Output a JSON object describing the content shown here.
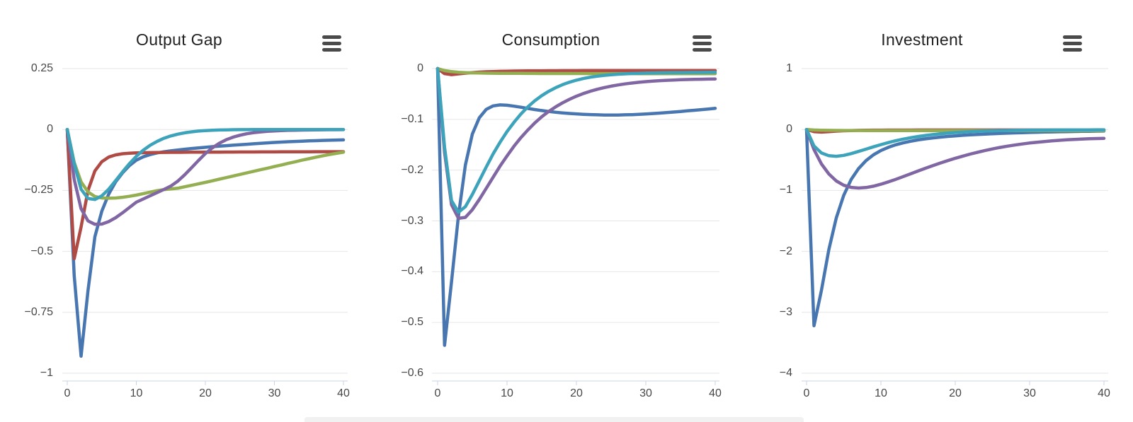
{
  "page": {
    "background": "#ffffff"
  },
  "style": {
    "grid_color": "#e6e6e6",
    "axis_line_color": "#c8d3e4",
    "tick_label_color": "#474747",
    "title_color": "#222222",
    "menu_icon_color": "#4a4a4a",
    "bottom_panel_color": "#f1f1f1"
  },
  "chart_data": [
    {
      "type": "line",
      "title": "Output Gap",
      "menu_icon": "hamburger-menu-icon",
      "legend": "none",
      "grid": "horizontal-only",
      "x_range": [
        0,
        40
      ],
      "x_step": 1,
      "x_tick_values": [
        0,
        10,
        20,
        30,
        40
      ],
      "x_tick_labels": [
        "0",
        "10",
        "20",
        "30",
        "40"
      ],
      "y_tick_values": [
        0.25,
        0,
        -0.25,
        -0.5,
        -0.75,
        -1
      ],
      "y_tick_labels": [
        "0.25",
        "0",
        "−0.25",
        "−0.5",
        "−0.75",
        "−1"
      ],
      "ylim": [
        -1.03,
        0.25
      ],
      "series": [
        {
          "name": "series-blue",
          "color": "#4876B0",
          "values": [
            0,
            -0.6,
            -0.93,
            -0.66,
            -0.44,
            -0.335,
            -0.265,
            -0.215,
            -0.178,
            -0.148,
            -0.126,
            -0.112,
            -0.103,
            -0.096,
            -0.0915,
            -0.0875,
            -0.084,
            -0.081,
            -0.078,
            -0.0755,
            -0.073,
            -0.0705,
            -0.0685,
            -0.0665,
            -0.0645,
            -0.0625,
            -0.0605,
            -0.0585,
            -0.0565,
            -0.0548,
            -0.0532,
            -0.0517,
            -0.0503,
            -0.049,
            -0.0478,
            -0.0467,
            -0.0457,
            -0.0448,
            -0.044,
            -0.0432,
            -0.0425
          ]
        },
        {
          "name": "series-red",
          "color": "#B04A45",
          "values": [
            0,
            -0.53,
            -0.4,
            -0.25,
            -0.17,
            -0.132,
            -0.113,
            -0.104,
            -0.0995,
            -0.0975,
            -0.096,
            -0.0952,
            -0.0947,
            -0.0943,
            -0.094,
            -0.0938,
            -0.0936,
            -0.0934,
            -0.0932,
            -0.0931,
            -0.0929,
            -0.0928,
            -0.0927,
            -0.0925,
            -0.0924,
            -0.0923,
            -0.0922,
            -0.0921,
            -0.092,
            -0.0919,
            -0.0918,
            -0.0917,
            -0.0916,
            -0.0915,
            -0.0914,
            -0.0913,
            -0.0912,
            -0.0912,
            -0.0911,
            -0.091,
            -0.091
          ]
        },
        {
          "name": "series-green",
          "color": "#94AE52",
          "values": [
            0,
            -0.135,
            -0.215,
            -0.256,
            -0.275,
            -0.281,
            -0.282,
            -0.281,
            -0.278,
            -0.274,
            -0.269,
            -0.263,
            -0.257,
            -0.251,
            -0.2465,
            -0.2437,
            -0.241,
            -0.235,
            -0.229,
            -0.223,
            -0.217,
            -0.2105,
            -0.204,
            -0.1975,
            -0.191,
            -0.1845,
            -0.178,
            -0.1715,
            -0.165,
            -0.1585,
            -0.152,
            -0.1455,
            -0.139,
            -0.1325,
            -0.126,
            -0.1198,
            -0.1138,
            -0.108,
            -0.1026,
            -0.0976,
            -0.093
          ]
        },
        {
          "name": "series-purple",
          "color": "#8066A2",
          "values": [
            0,
            -0.205,
            -0.325,
            -0.375,
            -0.389,
            -0.388,
            -0.378,
            -0.362,
            -0.342,
            -0.32,
            -0.298,
            -0.285,
            -0.272,
            -0.259,
            -0.246,
            -0.232,
            -0.212,
            -0.186,
            -0.157,
            -0.127,
            -0.099,
            -0.0755,
            -0.0565,
            -0.042,
            -0.0315,
            -0.0235,
            -0.0175,
            -0.013,
            -0.0098,
            -0.0075,
            -0.0058,
            -0.0045,
            -0.0036,
            -0.0029,
            -0.0023,
            -0.0019,
            -0.0015,
            -0.0012,
            -0.001,
            -0.0008,
            -0.0006
          ]
        },
        {
          "name": "series-teal",
          "color": "#3DA3BB",
          "values": [
            0,
            -0.14,
            -0.245,
            -0.283,
            -0.287,
            -0.272,
            -0.245,
            -0.21,
            -0.174,
            -0.14,
            -0.11,
            -0.085,
            -0.065,
            -0.049,
            -0.036,
            -0.0265,
            -0.019,
            -0.0135,
            -0.0095,
            -0.0065,
            -0.0045,
            -0.0031,
            -0.0021,
            -0.0014,
            -0.001,
            -0.0007,
            -0.0005,
            -0.0003,
            -0.0002,
            -0.0002,
            -0.0001,
            -0.0001,
            -0.0001,
            0,
            0,
            0,
            0,
            0,
            0,
            0,
            0
          ]
        }
      ]
    },
    {
      "type": "line",
      "title": "Consumption",
      "menu_icon": "hamburger-menu-icon",
      "legend": "none",
      "grid": "horizontal-only",
      "x_range": [
        0,
        40
      ],
      "x_step": 1,
      "x_tick_values": [
        0,
        10,
        20,
        30,
        40
      ],
      "x_tick_labels": [
        "0",
        "10",
        "20",
        "30",
        "40"
      ],
      "y_tick_values": [
        0,
        -0.1,
        -0.2,
        -0.3,
        -0.4,
        -0.5,
        -0.6
      ],
      "y_tick_labels": [
        "0",
        "−0.1",
        "−0.2",
        "−0.3",
        "−0.4",
        "−0.5",
        "−0.6"
      ],
      "ylim": [
        -0.615,
        0
      ],
      "series": [
        {
          "name": "series-blue",
          "color": "#4876B0",
          "values": [
            0,
            -0.545,
            -0.42,
            -0.29,
            -0.19,
            -0.129,
            -0.097,
            -0.0805,
            -0.0735,
            -0.0715,
            -0.0722,
            -0.074,
            -0.0762,
            -0.0785,
            -0.0807,
            -0.0827,
            -0.0845,
            -0.086,
            -0.0873,
            -0.0884,
            -0.0893,
            -0.09,
            -0.0906,
            -0.0911,
            -0.0914,
            -0.0915,
            -0.0914,
            -0.0911,
            -0.0907,
            -0.0901,
            -0.0894,
            -0.0886,
            -0.0877,
            -0.0867,
            -0.0856,
            -0.0845,
            -0.0833,
            -0.0821,
            -0.0809,
            -0.0796,
            -0.0783
          ]
        },
        {
          "name": "series-red",
          "color": "#B04A45",
          "values": [
            0,
            -0.01,
            -0.012,
            -0.0105,
            -0.009,
            -0.008,
            -0.007,
            -0.0063,
            -0.0058,
            -0.0054,
            -0.0051,
            -0.0049,
            -0.0047,
            -0.0046,
            -0.0045,
            -0.0044,
            -0.0043,
            -0.0043,
            -0.0042,
            -0.0042,
            -0.0042,
            -0.0041,
            -0.0041,
            -0.0041,
            -0.004,
            -0.004,
            -0.004,
            -0.004,
            -0.004,
            -0.004,
            -0.004,
            -0.004,
            -0.004,
            -0.004,
            -0.004,
            -0.004,
            -0.004,
            -0.004,
            -0.004,
            -0.004,
            -0.004
          ]
        },
        {
          "name": "series-green",
          "color": "#94AE52",
          "values": [
            0,
            -0.004,
            -0.006,
            -0.0072,
            -0.008,
            -0.0085,
            -0.0088,
            -0.009,
            -0.0092,
            -0.0093,
            -0.0094,
            -0.0095,
            -0.0095,
            -0.0096,
            -0.0096,
            -0.0097,
            -0.0097,
            -0.0097,
            -0.0098,
            -0.0098,
            -0.0098,
            -0.0098,
            -0.0099,
            -0.0099,
            -0.0099,
            -0.0099,
            -0.0099,
            -0.0099,
            -0.0099,
            -0.01,
            -0.01,
            -0.01,
            -0.01,
            -0.01,
            -0.01,
            -0.01,
            -0.01,
            -0.01,
            -0.01,
            -0.01,
            -0.01
          ]
        },
        {
          "name": "series-purple",
          "color": "#8066A2",
          "values": [
            0,
            -0.165,
            -0.268,
            -0.295,
            -0.293,
            -0.278,
            -0.258,
            -0.236,
            -0.214,
            -0.192,
            -0.172,
            -0.153,
            -0.136,
            -0.121,
            -0.107,
            -0.095,
            -0.0845,
            -0.0755,
            -0.0675,
            -0.0605,
            -0.0545,
            -0.0492,
            -0.0447,
            -0.0408,
            -0.0375,
            -0.0347,
            -0.0323,
            -0.0302,
            -0.0285,
            -0.027,
            -0.0257,
            -0.0247,
            -0.0238,
            -0.0231,
            -0.0225,
            -0.022,
            -0.0216,
            -0.0212,
            -0.021,
            -0.0207,
            -0.0205
          ]
        },
        {
          "name": "series-teal",
          "color": "#3DA3BB",
          "values": [
            0,
            -0.155,
            -0.26,
            -0.283,
            -0.272,
            -0.248,
            -0.221,
            -0.194,
            -0.168,
            -0.145,
            -0.124,
            -0.106,
            -0.0895,
            -0.0755,
            -0.0635,
            -0.0533,
            -0.0448,
            -0.0377,
            -0.0317,
            -0.0268,
            -0.0228,
            -0.0196,
            -0.017,
            -0.015,
            -0.0134,
            -0.0121,
            -0.0111,
            -0.0104,
            -0.0098,
            -0.0093,
            -0.0089,
            -0.0086,
            -0.0084,
            -0.0082,
            -0.008,
            -0.0079,
            -0.0078,
            -0.0077,
            -0.0076,
            -0.0075,
            -0.0074
          ]
        }
      ]
    },
    {
      "type": "line",
      "title": "Investment",
      "menu_icon": "hamburger-menu-icon",
      "legend": "none",
      "grid": "horizontal-only",
      "x_range": [
        0,
        40
      ],
      "x_step": 1,
      "x_tick_values": [
        0,
        10,
        20,
        30,
        40
      ],
      "x_tick_labels": [
        "0",
        "10",
        "20",
        "30",
        "40"
      ],
      "y_tick_values": [
        1,
        0,
        -1,
        -2,
        -3,
        -4
      ],
      "y_tick_labels": [
        "1",
        "0",
        "−1",
        "−2",
        "−3",
        "−4"
      ],
      "ylim": [
        -4.13,
        1
      ],
      "series": [
        {
          "name": "series-blue",
          "color": "#4876B0",
          "values": [
            0,
            -3.22,
            -2.64,
            -1.97,
            -1.45,
            -1.08,
            -0.82,
            -0.64,
            -0.51,
            -0.415,
            -0.345,
            -0.292,
            -0.251,
            -0.219,
            -0.192,
            -0.171,
            -0.153,
            -0.138,
            -0.125,
            -0.114,
            -0.104,
            -0.0955,
            -0.088,
            -0.081,
            -0.075,
            -0.0695,
            -0.0645,
            -0.06,
            -0.056,
            -0.052,
            -0.0485,
            -0.045,
            -0.042,
            -0.0395,
            -0.037,
            -0.0345,
            -0.0325,
            -0.0305,
            -0.0285,
            -0.027,
            -0.0255
          ]
        },
        {
          "name": "series-red",
          "color": "#B04A45",
          "values": [
            0,
            -0.035,
            -0.043,
            -0.036,
            -0.027,
            -0.021,
            -0.017,
            -0.014,
            -0.012,
            -0.011,
            -0.0102,
            -0.0097,
            -0.0093,
            -0.009,
            -0.0088,
            -0.0086,
            -0.0085,
            -0.0084,
            -0.0083,
            -0.0082,
            -0.0081,
            -0.0081,
            -0.008,
            -0.008,
            -0.008,
            -0.008,
            -0.008,
            -0.008,
            -0.008,
            -0.008,
            -0.008,
            -0.008,
            -0.008,
            -0.008,
            -0.008,
            -0.008,
            -0.008,
            -0.008,
            -0.008,
            -0.008,
            -0.008
          ]
        },
        {
          "name": "series-green",
          "color": "#94AE52",
          "values": [
            0,
            -0.008,
            -0.012,
            -0.014,
            -0.015,
            -0.016,
            -0.0165,
            -0.0168,
            -0.017,
            -0.0172,
            -0.0173,
            -0.0174,
            -0.0175,
            -0.0176,
            -0.0176,
            -0.0177,
            -0.0177,
            -0.0177,
            -0.0178,
            -0.0178,
            -0.0178,
            -0.0178,
            -0.0179,
            -0.0179,
            -0.0179,
            -0.0179,
            -0.0179,
            -0.0179,
            -0.0179,
            -0.018,
            -0.018,
            -0.018,
            -0.018,
            -0.018,
            -0.018,
            -0.018,
            -0.018,
            -0.018,
            -0.018,
            -0.018,
            -0.018
          ]
        },
        {
          "name": "series-purple",
          "color": "#8066A2",
          "values": [
            0,
            -0.33,
            -0.565,
            -0.73,
            -0.845,
            -0.915,
            -0.95,
            -0.96,
            -0.952,
            -0.93,
            -0.898,
            -0.86,
            -0.818,
            -0.773,
            -0.727,
            -0.681,
            -0.636,
            -0.592,
            -0.55,
            -0.51,
            -0.472,
            -0.437,
            -0.404,
            -0.373,
            -0.345,
            -0.319,
            -0.295,
            -0.274,
            -0.255,
            -0.238,
            -0.222,
            -0.209,
            -0.197,
            -0.186,
            -0.177,
            -0.169,
            -0.162,
            -0.157,
            -0.152,
            -0.148,
            -0.145
          ]
        },
        {
          "name": "series-teal",
          "color": "#3DA3BB",
          "values": [
            0,
            -0.27,
            -0.385,
            -0.43,
            -0.44,
            -0.425,
            -0.396,
            -0.36,
            -0.322,
            -0.284,
            -0.248,
            -0.215,
            -0.185,
            -0.158,
            -0.135,
            -0.115,
            -0.0975,
            -0.0825,
            -0.07,
            -0.059,
            -0.05,
            -0.0425,
            -0.036,
            -0.0305,
            -0.026,
            -0.022,
            -0.019,
            -0.0165,
            -0.0145,
            -0.0125,
            -0.011,
            -0.0098,
            -0.0088,
            -0.008,
            -0.0073,
            -0.0067,
            -0.0062,
            -0.0058,
            -0.0055,
            -0.0052,
            -0.005
          ]
        }
      ]
    }
  ]
}
